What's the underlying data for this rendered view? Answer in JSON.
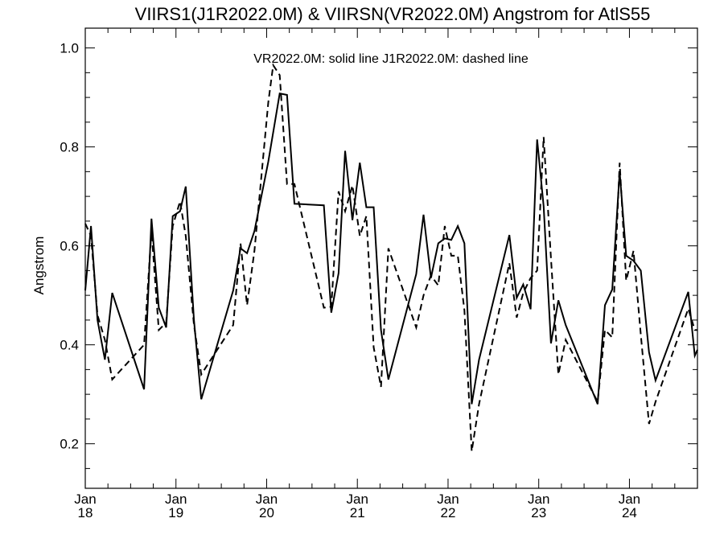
{
  "chart_data": {
    "type": "line",
    "title": "VIIRS1(J1R2022.0M) & VIIRSN(VR2022.0M)  Angstrom for AtlS55",
    "ylabel": "Angstrom",
    "xlabel": "",
    "annotation": "VR2022.0M: solid line   J1R2022.0M: dashed line",
    "xlim": [
      2018.0,
      2024.75
    ],
    "ylim": [
      0.11,
      1.04
    ],
    "yticks": [
      {
        "value": 0.2,
        "label": "0.2"
      },
      {
        "value": 0.4,
        "label": "0.4"
      },
      {
        "value": 0.6,
        "label": "0.6"
      },
      {
        "value": 0.8,
        "label": "0.8"
      },
      {
        "value": 1.0,
        "label": "1.0"
      }
    ],
    "xticks": [
      {
        "value": 2018,
        "line1": "Jan",
        "line2": "18"
      },
      {
        "value": 2019,
        "line1": "Jan",
        "line2": "19"
      },
      {
        "value": 2020,
        "line1": "Jan",
        "line2": "20"
      },
      {
        "value": 2021,
        "line1": "Jan",
        "line2": "21"
      },
      {
        "value": 2022,
        "line1": "Jan",
        "line2": "22"
      },
      {
        "value": 2023,
        "line1": "Jan",
        "line2": "23"
      },
      {
        "value": 2024,
        "line1": "Jan",
        "line2": "24"
      }
    ],
    "grid": false,
    "series": [
      {
        "name": "VR2022.0M",
        "style": "solid",
        "color": "#000000",
        "x": [
          2018.0,
          2018.063,
          2018.135,
          2018.216,
          2018.297,
          2018.648,
          2018.73,
          2018.811,
          2018.892,
          2018.964,
          2019.045,
          2019.108,
          2019.198,
          2019.279,
          2019.631,
          2019.712,
          2019.784,
          2019.865,
          2020.018,
          2020.144,
          2020.225,
          2020.306,
          2020.631,
          2020.712,
          2020.793,
          2020.865,
          2020.946,
          2021.027,
          2021.099,
          2021.18,
          2021.261,
          2021.342,
          2021.649,
          2021.73,
          2021.811,
          2021.892,
          2021.964,
          2022.036,
          2022.108,
          2022.18,
          2022.261,
          2022.342,
          2022.676,
          2022.757,
          2022.829,
          2022.91,
          2022.982,
          2023.054,
          2023.135,
          2023.216,
          2023.297,
          2023.649,
          2023.73,
          2023.811,
          2023.892,
          2023.964,
          2024.045,
          2024.126,
          2024.216,
          2024.288,
          2024.649,
          2024.721,
          2024.75
        ],
        "y": [
          0.51,
          0.64,
          0.45,
          0.37,
          0.505,
          0.31,
          0.655,
          0.475,
          0.435,
          0.66,
          0.67,
          0.72,
          0.45,
          0.29,
          0.51,
          0.595,
          0.585,
          0.63,
          0.77,
          0.908,
          0.905,
          0.685,
          0.682,
          0.465,
          0.545,
          0.792,
          0.652,
          0.768,
          0.678,
          0.678,
          0.43,
          0.33,
          0.543,
          0.663,
          0.535,
          0.605,
          0.615,
          0.612,
          0.64,
          0.605,
          0.28,
          0.37,
          0.622,
          0.495,
          0.522,
          0.472,
          0.815,
          0.68,
          0.403,
          0.49,
          0.44,
          0.28,
          0.48,
          0.512,
          0.75,
          0.58,
          0.57,
          0.55,
          0.385,
          0.328,
          0.507,
          0.378,
          0.39
        ]
      },
      {
        "name": "J1R2022.0M",
        "style": "dashed",
        "color": "#000000",
        "x": [
          2018.0,
          2018.063,
          2018.135,
          2018.216,
          2018.297,
          2018.648,
          2018.73,
          2018.811,
          2018.892,
          2018.964,
          2019.045,
          2019.108,
          2019.198,
          2019.279,
          2019.631,
          2019.712,
          2019.784,
          2019.865,
          2020.018,
          2020.072,
          2020.144,
          2020.225,
          2020.306,
          2020.631,
          2020.712,
          2020.793,
          2020.865,
          2020.946,
          2021.027,
          2021.099,
          2021.18,
          2021.261,
          2021.342,
          2021.649,
          2021.73,
          2021.811,
          2021.892,
          2021.964,
          2022.036,
          2022.108,
          2022.18,
          2022.261,
          2022.342,
          2022.676,
          2022.757,
          2022.829,
          2022.91,
          2022.982,
          2023.054,
          2023.135,
          2023.216,
          2023.297,
          2023.649,
          2023.73,
          2023.811,
          2023.892,
          2023.964,
          2024.045,
          2024.126,
          2024.216,
          2024.288,
          2024.649,
          2024.721,
          2024.75
        ],
        "y": [
          0.645,
          0.62,
          0.46,
          0.41,
          0.33,
          0.4,
          0.63,
          0.43,
          0.445,
          0.64,
          0.69,
          0.62,
          0.44,
          0.34,
          0.44,
          0.605,
          0.48,
          0.59,
          0.89,
          0.965,
          0.945,
          0.725,
          0.725,
          0.475,
          0.477,
          0.71,
          0.67,
          0.722,
          0.62,
          0.66,
          0.395,
          0.315,
          0.595,
          0.435,
          0.5,
          0.54,
          0.52,
          0.64,
          0.58,
          0.58,
          0.47,
          0.185,
          0.28,
          0.565,
          0.455,
          0.505,
          0.535,
          0.55,
          0.82,
          0.575,
          0.34,
          0.41,
          0.285,
          0.43,
          0.415,
          0.768,
          0.53,
          0.59,
          0.42,
          0.24,
          0.285,
          0.473,
          0.43,
          0.43
        ]
      }
    ]
  }
}
